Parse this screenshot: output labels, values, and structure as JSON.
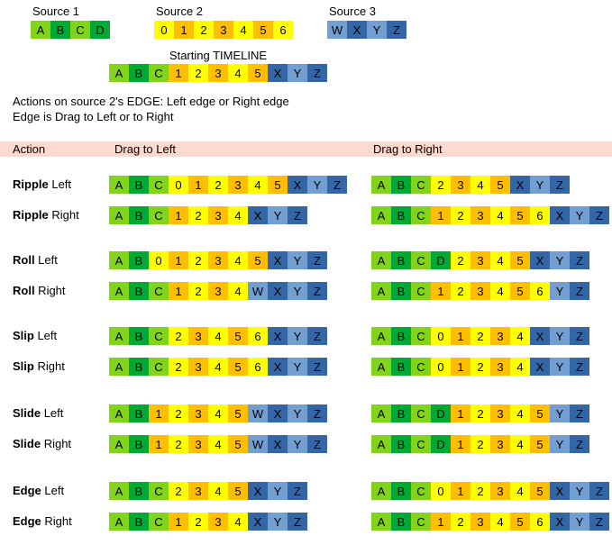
{
  "colors": {
    "lightgreen": "#81D41A",
    "green": "#00A933",
    "yellow": "#FFFF00",
    "gold": "#FFBF00",
    "lightblue": "#729FCF",
    "darkblue": "#3465A4",
    "header_bg": "#FFD8CE",
    "cell_text": "#000000",
    "background": "#FFFFFF"
  },
  "symbol_colors": {
    "A": "lightgreen",
    "B": "green",
    "C": "lightgreen",
    "D": "green",
    "0": "yellow",
    "1": "gold",
    "2": "yellow",
    "3": "gold",
    "4": "yellow",
    "5": "gold",
    "6": "yellow",
    "W": "lightblue",
    "X": "darkblue",
    "Y": "lightblue",
    "Z": "darkblue"
  },
  "sources": [
    {
      "label": "Source 1",
      "cells": [
        "A",
        "B",
        "C",
        "D"
      ]
    },
    {
      "label": "Source 2",
      "cells": [
        "0",
        "1",
        "2",
        "3",
        "4",
        "5",
        "6"
      ]
    },
    {
      "label": "Source 3",
      "cells": [
        "W",
        "X",
        "Y",
        "Z"
      ]
    }
  ],
  "timeline": {
    "label": "Starting TIMELINE",
    "cells": [
      "A",
      "B",
      "C",
      "1",
      "2",
      "3",
      "4",
      "5",
      "X",
      "Y",
      "Z"
    ]
  },
  "intro": {
    "line1": "Actions on source 2's EDGE: Left edge or Right edge",
    "line2": "Edge is Drag to Left or to Right"
  },
  "table": {
    "headers": {
      "action": "Action",
      "drag_left": "Drag to Left",
      "drag_right": "Drag to Right"
    },
    "rows": [
      {
        "action": "Ripple",
        "side": "Left",
        "drag_left": [
          "A",
          "B",
          "C",
          "0",
          "1",
          "2",
          "3",
          "4",
          "5",
          "X",
          "Y",
          "Z"
        ],
        "drag_right": [
          "A",
          "B",
          "C",
          "2",
          "3",
          "4",
          "5",
          "X",
          "Y",
          "Z"
        ]
      },
      {
        "action": "Ripple",
        "side": "Right",
        "drag_left": [
          "A",
          "B",
          "C",
          "1",
          "2",
          "3",
          "4",
          "X",
          "Y",
          "Z"
        ],
        "drag_right": [
          "A",
          "B",
          "C",
          "1",
          "2",
          "3",
          "4",
          "5",
          "6",
          "X",
          "Y",
          "Z"
        ]
      },
      {
        "action": "Roll",
        "side": "Left",
        "drag_left": [
          "A",
          "B",
          "0",
          "1",
          "2",
          "3",
          "4",
          "5",
          "X",
          "Y",
          "Z"
        ],
        "drag_right": [
          "A",
          "B",
          "C",
          "D",
          "2",
          "3",
          "4",
          "5",
          "X",
          "Y",
          "Z"
        ]
      },
      {
        "action": "Roll",
        "side": "Right",
        "drag_left": [
          "A",
          "B",
          "C",
          "1",
          "2",
          "3",
          "4",
          "W",
          "X",
          "Y",
          "Z"
        ],
        "drag_right": [
          "A",
          "B",
          "C",
          "1",
          "2",
          "3",
          "4",
          "5",
          "6",
          "Y",
          "Z"
        ]
      },
      {
        "action": "Slip",
        "side": "Left",
        "drag_left": [
          "A",
          "B",
          "C",
          "2",
          "3",
          "4",
          "5",
          "6",
          "X",
          "Y",
          "Z"
        ],
        "drag_right": [
          "A",
          "B",
          "C",
          "0",
          "1",
          "2",
          "3",
          "4",
          "X",
          "Y",
          "Z"
        ]
      },
      {
        "action": "Slip",
        "side": "Right",
        "drag_left": [
          "A",
          "B",
          "C",
          "2",
          "3",
          "4",
          "5",
          "6",
          "X",
          "Y",
          "Z"
        ],
        "drag_right": [
          "A",
          "B",
          "C",
          "0",
          "1",
          "2",
          "3",
          "4",
          "X",
          "Y",
          "Z"
        ]
      },
      {
        "action": "Slide",
        "side": "Left",
        "drag_left": [
          "A",
          "B",
          "1",
          "2",
          "3",
          "4",
          "5",
          "W",
          "X",
          "Y",
          "Z"
        ],
        "drag_right": [
          "A",
          "B",
          "C",
          "D",
          "1",
          "2",
          "3",
          "4",
          "5",
          "Y",
          "Z"
        ]
      },
      {
        "action": "Slide",
        "side": "Right",
        "drag_left": [
          "A",
          "B",
          "1",
          "2",
          "3",
          "4",
          "5",
          "W",
          "X",
          "Y",
          "Z"
        ],
        "drag_right": [
          "A",
          "B",
          "C",
          "D",
          "1",
          "2",
          "3",
          "4",
          "5",
          "Y",
          "Z"
        ]
      },
      {
        "action": "Edge",
        "side": "Left",
        "drag_left": [
          "A",
          "B",
          "C",
          "2",
          "3",
          "4",
          "5",
          "X",
          "Y",
          "Z"
        ],
        "drag_right": [
          "A",
          "B",
          "C",
          "0",
          "1",
          "2",
          "3",
          "4",
          "5",
          "X",
          "Y",
          "Z"
        ]
      },
      {
        "action": "Edge",
        "side": "Right",
        "drag_left": [
          "A",
          "B",
          "C",
          "1",
          "2",
          "3",
          "4",
          "X",
          "Y",
          "Z"
        ],
        "drag_right": [
          "A",
          "B",
          "C",
          "1",
          "2",
          "3",
          "4",
          "5",
          "6",
          "X",
          "Y",
          "Z"
        ]
      }
    ]
  }
}
